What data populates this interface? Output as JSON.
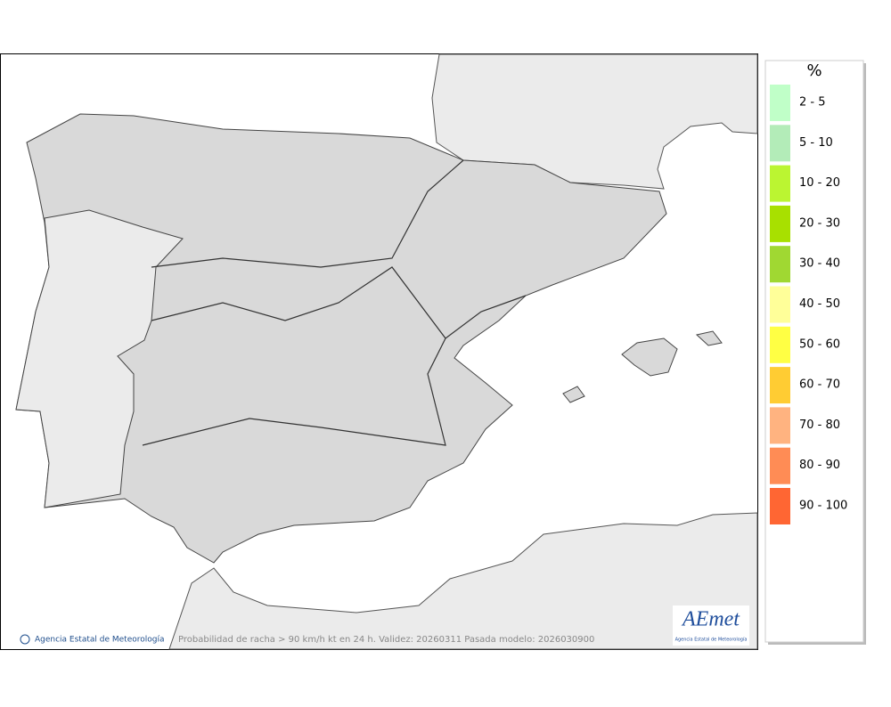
{
  "legend": {
    "title": "%",
    "items": [
      {
        "label": "2 - 5",
        "color": "#c0ffc8"
      },
      {
        "label": "5 - 10",
        "color": "#b3ecb8"
      },
      {
        "label": "10 - 20",
        "color": "#bbf531"
      },
      {
        "label": "20 - 30",
        "color": "#a8e000"
      },
      {
        "label": "30 - 40",
        "color": "#a0d832"
      },
      {
        "label": "40 - 50",
        "color": "#ffff99"
      },
      {
        "label": "50 - 60",
        "color": "#ffff44"
      },
      {
        "label": "60 - 70",
        "color": "#ffcc33"
      },
      {
        "label": "70 - 80",
        "color": "#ffb380"
      },
      {
        "label": "80 - 90",
        "color": "#ff8c55"
      },
      {
        "label": "90 - 100",
        "color": "#ff6633"
      }
    ]
  },
  "footer": {
    "credit": "Agencia Estatal de Meteorología",
    "caption": "Probabilidad de racha > 90 km/h kt en 24 h. Validez: 20260311 Pasada modelo: 2026030900"
  },
  "logo": {
    "name": "AEmet",
    "subtitle": "Agencia Estatal de Meteorología"
  }
}
